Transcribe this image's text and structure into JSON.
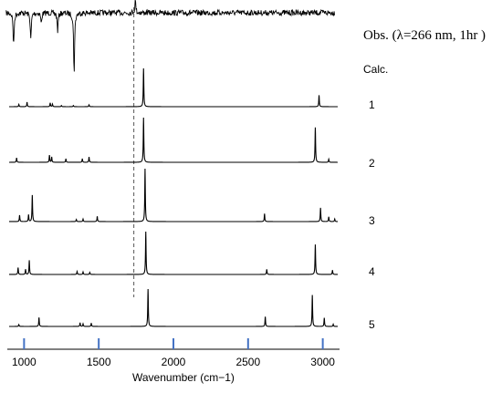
{
  "chart_data": {
    "type": "line",
    "observed_label": "Obs. (λ=266 nm, 1hr )",
    "calculated_label": "Calc.",
    "xlabel": "Wavenumber (cm−1)",
    "xlim": [
      900,
      3100
    ],
    "x_ticks": [
      1000,
      1500,
      2000,
      2500,
      3000
    ],
    "axis_tick_color": "#4472c4",
    "dashed_marker_x": 1735,
    "observed_peaks": [
      {
        "x": 930,
        "depth": 0.55
      },
      {
        "x": 1045,
        "depth": 0.45
      },
      {
        "x": 1115,
        "depth": 0.18
      },
      {
        "x": 1225,
        "depth": 0.3
      },
      {
        "x": 1335,
        "depth": 1.0
      },
      {
        "x": 1745,
        "depth": -0.2
      }
    ],
    "series": [
      {
        "label": "1",
        "peaks": [
          [
            965,
            0.06
          ],
          [
            1020,
            0.12
          ],
          [
            1175,
            0.1
          ],
          [
            1190,
            0.07
          ],
          [
            1250,
            0.03
          ],
          [
            1330,
            0.03
          ],
          [
            1435,
            0.05
          ],
          [
            1800,
            1.0
          ],
          [
            2975,
            0.3
          ]
        ]
      },
      {
        "label": "2",
        "peaks": [
          [
            950,
            0.1
          ],
          [
            1170,
            0.16
          ],
          [
            1185,
            0.12
          ],
          [
            1280,
            0.08
          ],
          [
            1390,
            0.08
          ],
          [
            1435,
            0.12
          ],
          [
            1800,
            1.0
          ],
          [
            2950,
            0.78
          ],
          [
            3040,
            0.07
          ]
        ]
      },
      {
        "label": "3",
        "peaks": [
          [
            970,
            0.12
          ],
          [
            1030,
            0.13
          ],
          [
            1055,
            0.5
          ],
          [
            1350,
            0.04
          ],
          [
            1395,
            0.05
          ],
          [
            1490,
            0.1
          ],
          [
            1810,
            1.0
          ],
          [
            2610,
            0.15
          ],
          [
            2985,
            0.26
          ],
          [
            3040,
            0.09
          ],
          [
            3080,
            0.05
          ]
        ]
      },
      {
        "label": "4",
        "peaks": [
          [
            960,
            0.16
          ],
          [
            1010,
            0.12
          ],
          [
            1035,
            0.33
          ],
          [
            1355,
            0.07
          ],
          [
            1395,
            0.06
          ],
          [
            1440,
            0.05
          ],
          [
            1815,
            1.0
          ],
          [
            2625,
            0.12
          ],
          [
            2950,
            0.7
          ],
          [
            3065,
            0.1
          ]
        ]
      },
      {
        "label": "5",
        "peaks": [
          [
            965,
            0.05
          ],
          [
            1100,
            0.24
          ],
          [
            1375,
            0.1
          ],
          [
            1395,
            0.07
          ],
          [
            1450,
            0.09
          ],
          [
            1830,
            1.0
          ],
          [
            2615,
            0.26
          ],
          [
            2930,
            0.84
          ],
          [
            3010,
            0.23
          ],
          [
            3070,
            0.06
          ]
        ]
      }
    ],
    "grid": false
  }
}
